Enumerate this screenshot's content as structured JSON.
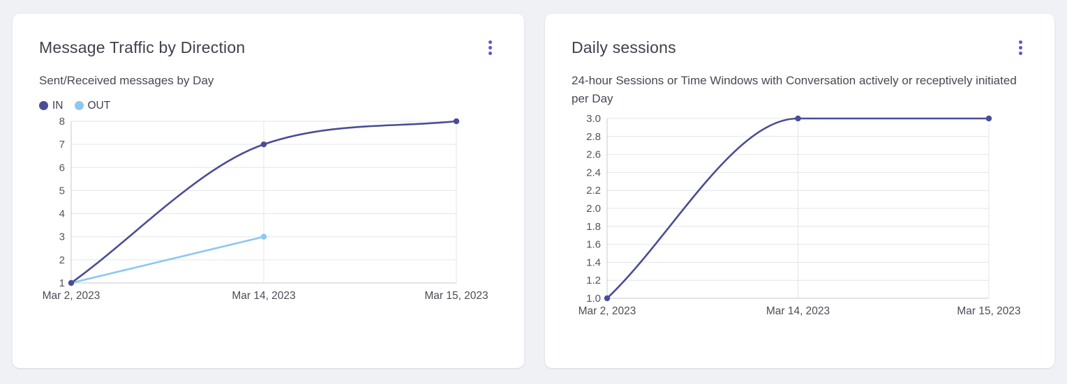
{
  "page": {
    "background": "#f0f1f5"
  },
  "colors": {
    "accent_menu": "#5b55d6",
    "line_primary": "#4a4d95",
    "line_secondary": "#8dc8f0",
    "grid": "#e4e5ea",
    "axis": "#c7c8d2"
  },
  "cards": [
    {
      "title": "Message Traffic by Direction",
      "subtitle": "Sent/Received messages by Day",
      "menu_icon": "kebab-menu-icon"
    },
    {
      "title": "Daily sessions",
      "subtitle": "24-hour Sessions or Time Windows with Conversation actively or receptively initiated per Day",
      "menu_icon": "kebab-menu-icon"
    }
  ],
  "chart_data": [
    {
      "type": "line",
      "title": "Message Traffic by Direction",
      "subtitle": "Sent/Received messages by Day",
      "x": [
        "Mar 2, 2023",
        "Mar 14, 2023",
        "Mar 15, 2023"
      ],
      "series": [
        {
          "name": "IN",
          "color": "#4a4d95",
          "values": [
            1,
            7,
            8
          ]
        },
        {
          "name": "OUT",
          "color": "#8dc8f0",
          "values": [
            1,
            3,
            null
          ]
        }
      ],
      "ylim": [
        1,
        8
      ],
      "yticks": [
        "1",
        "2",
        "3",
        "4",
        "5",
        "6",
        "7",
        "8"
      ],
      "xlabel": "",
      "ylabel": "",
      "grid": true,
      "legend": true,
      "legend_position": "top-left",
      "curve": "monotone"
    },
    {
      "type": "line",
      "title": "Daily sessions",
      "subtitle": "24-hour Sessions or Time Windows with Conversation actively or receptively initiated per Day",
      "x": [
        "Mar 2, 2023",
        "Mar 14, 2023",
        "Mar 15, 2023"
      ],
      "series": [
        {
          "name": "Daily sessions",
          "color": "#4a4d95",
          "values": [
            1.0,
            3.0,
            3.0
          ]
        }
      ],
      "ylim": [
        1.0,
        3.0
      ],
      "yticks": [
        "1.0",
        "1.2",
        "1.4",
        "1.6",
        "1.8",
        "2.0",
        "2.2",
        "2.4",
        "2.6",
        "2.8",
        "3.0"
      ],
      "xlabel": "",
      "ylabel": "",
      "grid": true,
      "legend": false,
      "curve": "monotone"
    }
  ]
}
